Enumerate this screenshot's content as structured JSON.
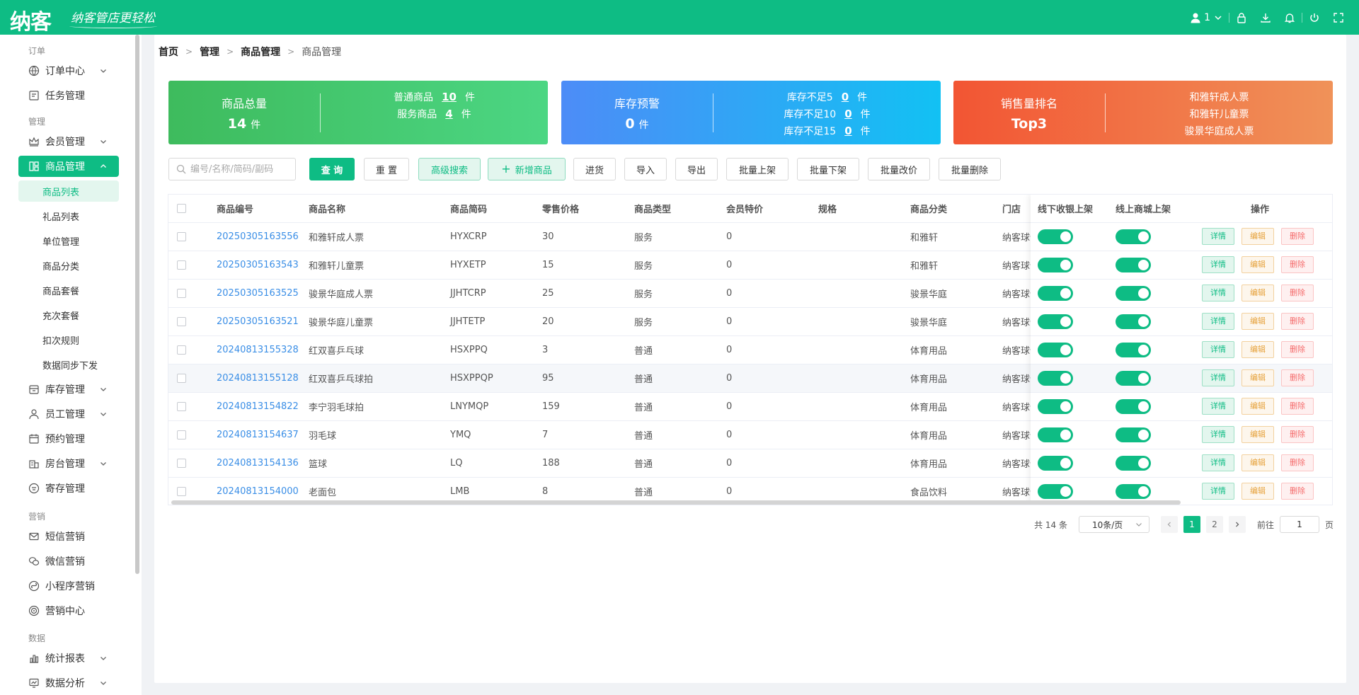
{
  "header": {
    "logo_main": "纳客",
    "logo_sub": "纳客管店更轻松",
    "user_label": "1",
    "icons": [
      "user-icon",
      "chevron-down-icon",
      "lock-icon",
      "download-icon",
      "bell-icon",
      "power-icon",
      "fullscreen-icon"
    ]
  },
  "sidebar": {
    "groups": [
      {
        "label": "订单",
        "items": [
          {
            "label": "订单中心",
            "icon": "globe-icon",
            "expandable": true
          },
          {
            "label": "任务管理",
            "icon": "task-icon",
            "expandable": false
          }
        ]
      },
      {
        "label": "管理",
        "items": [
          {
            "label": "会员管理",
            "icon": "crown-icon",
            "expandable": true
          },
          {
            "label": "商品管理",
            "icon": "grid-icon",
            "expandable": true,
            "active": true,
            "children": [
              "商品列表",
              "礼品列表",
              "单位管理",
              "商品分类",
              "商品套餐",
              "充次套餐",
              "扣次规则",
              "数据同步下发"
            ]
          },
          {
            "label": "库存管理",
            "icon": "inventory-icon",
            "expandable": true
          },
          {
            "label": "员工管理",
            "icon": "staff-icon",
            "expandable": true
          },
          {
            "label": "预约管理",
            "icon": "calendar-icon",
            "expandable": false
          },
          {
            "label": "房台管理",
            "icon": "building-icon",
            "expandable": true
          },
          {
            "label": "寄存管理",
            "icon": "deposit-icon",
            "expandable": false
          }
        ]
      },
      {
        "label": "营销",
        "items": [
          {
            "label": "短信营销",
            "icon": "mail-icon",
            "expandable": false
          },
          {
            "label": "微信营销",
            "icon": "wechat-icon",
            "expandable": false
          },
          {
            "label": "小程序营销",
            "icon": "miniapp-icon",
            "expandable": false
          },
          {
            "label": "营销中心",
            "icon": "target-icon",
            "expandable": false
          }
        ]
      },
      {
        "label": "数据",
        "items": [
          {
            "label": "统计报表",
            "icon": "chart-icon",
            "expandable": true
          },
          {
            "label": "数据分析",
            "icon": "analysis-icon",
            "expandable": true
          }
        ]
      }
    ],
    "active_child": "商品列表"
  },
  "breadcrumb": [
    "首页",
    "管理",
    "商品管理",
    "商品管理"
  ],
  "cards": {
    "total": {
      "title": "商品总量",
      "value": "14",
      "unit": "件",
      "lines": [
        {
          "label": "普通商品",
          "value": "10",
          "unit": "件"
        },
        {
          "label": "服务商品",
          "value": "4",
          "unit": "件"
        }
      ]
    },
    "stock": {
      "title": "库存预警",
      "value": "0",
      "unit": "件",
      "lines": [
        {
          "label": "库存不足5",
          "value": "0",
          "unit": "件"
        },
        {
          "label": "库存不足10",
          "value": "0",
          "unit": "件"
        },
        {
          "label": "库存不足15",
          "value": "0",
          "unit": "件"
        }
      ]
    },
    "sales": {
      "title": "销售量排名",
      "value": "Top3",
      "lines": [
        {
          "label": "和雅轩成人票"
        },
        {
          "label": "和雅轩儿童票"
        },
        {
          "label": "骏景华庭成人票"
        }
      ]
    }
  },
  "toolbar": {
    "search_placeholder": "编号/名称/简码/副码",
    "buttons": [
      "查 询",
      "重 置",
      "高级搜索",
      "新增商品",
      "进货",
      "导入",
      "导出",
      "批量上架",
      "批量下架",
      "批量改价",
      "批量删除"
    ]
  },
  "table": {
    "columns": [
      "商品编号",
      "商品名称",
      "商品简码",
      "零售价格",
      "商品类型",
      "会员特价",
      "规格",
      "商品分类",
      "门店",
      "线下收银上架",
      "线上商城上架",
      "操作"
    ],
    "rows": [
      {
        "code": "20250305163556",
        "name": "和雅轩成人票",
        "short": "HYXCRP",
        "price": "30",
        "type": "服务",
        "member": "0",
        "spec": "",
        "category": "和雅轩",
        "store": "纳客球馆"
      },
      {
        "code": "20250305163543",
        "name": "和雅轩儿童票",
        "short": "HYXETP",
        "price": "15",
        "type": "服务",
        "member": "0",
        "spec": "",
        "category": "和雅轩",
        "store": "纳客球馆"
      },
      {
        "code": "20250305163525",
        "name": "骏景华庭成人票",
        "short": "JJHTCRP",
        "price": "25",
        "type": "服务",
        "member": "0",
        "spec": "",
        "category": "骏景华庭",
        "store": "纳客球馆"
      },
      {
        "code": "20250305163521",
        "name": "骏景华庭儿童票",
        "short": "JJHTETP",
        "price": "20",
        "type": "服务",
        "member": "0",
        "spec": "",
        "category": "骏景华庭",
        "store": "纳客球馆"
      },
      {
        "code": "20240813155328",
        "name": "红双喜乒乓球",
        "short": "HSXPPQ",
        "price": "3",
        "type": "普通",
        "member": "0",
        "spec": "",
        "category": "体育用品",
        "store": "纳客球馆"
      },
      {
        "code": "20240813155128",
        "name": "红双喜乒乓球拍",
        "short": "HSXPPQP",
        "price": "95",
        "type": "普通",
        "member": "0",
        "spec": "",
        "category": "体育用品",
        "store": "纳客球馆"
      },
      {
        "code": "20240813154822",
        "name": "李宁羽毛球拍",
        "short": "LNYMQP",
        "price": "159",
        "type": "普通",
        "member": "0",
        "spec": "",
        "category": "体育用品",
        "store": "纳客球馆"
      },
      {
        "code": "20240813154637",
        "name": "羽毛球",
        "short": "YMQ",
        "price": "7",
        "type": "普通",
        "member": "0",
        "spec": "",
        "category": "体育用品",
        "store": "纳客球馆"
      },
      {
        "code": "20240813154136",
        "name": "篮球",
        "short": "LQ",
        "price": "188",
        "type": "普通",
        "member": "0",
        "spec": "",
        "category": "体育用品",
        "store": "纳客球馆"
      },
      {
        "code": "20240813154000",
        "name": "老面包",
        "short": "LMB",
        "price": "8",
        "type": "普通",
        "member": "0",
        "spec": "",
        "category": "食品饮料",
        "store": "纳客球馆"
      }
    ],
    "hover_row": 5,
    "actions": [
      "详情",
      "编辑",
      "删除"
    ],
    "toggle_state": true
  },
  "pagination": {
    "total_label": "共 14 条",
    "page_size": "10条/页",
    "pages": [
      "1",
      "2"
    ],
    "current": "1",
    "goto_label": "前往",
    "goto_value": "1",
    "page_unit": "页"
  },
  "colors": {
    "brand": "#0ebc84",
    "link": "#3a8ee6"
  }
}
